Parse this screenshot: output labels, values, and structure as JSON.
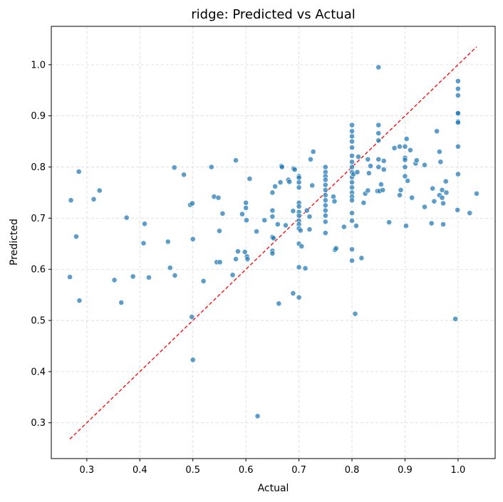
{
  "chart_data": {
    "type": "scatter",
    "title": "ridge: Predicted vs Actual",
    "xlabel": "Actual",
    "ylabel": "Predicted",
    "xlim": [
      0.233,
      1.07
    ],
    "ylim": [
      0.23,
      1.075
    ],
    "xticks": [
      0.3,
      0.4,
      0.5,
      0.6,
      0.7,
      0.8,
      0.9,
      1.0
    ],
    "yticks": [
      0.3,
      0.4,
      0.5,
      0.6,
      0.7,
      0.8,
      0.9,
      1.0
    ],
    "xtick_labels": [
      "0.3",
      "0.4",
      "0.5",
      "0.6",
      "0.7",
      "0.8",
      "0.9",
      "1.0"
    ],
    "ytick_labels": [
      "0.3",
      "0.4",
      "0.5",
      "0.6",
      "0.7",
      "0.8",
      "0.9",
      "1.0"
    ],
    "grid": true,
    "point_color": "#1f77b4",
    "reference_line": {
      "style": "dashed",
      "color": "#ff0000",
      "from": [
        0.268,
        0.268
      ],
      "to": [
        1.035,
        1.035
      ]
    },
    "points": [
      [
        0.268,
        0.585
      ],
      [
        0.27,
        0.735
      ],
      [
        0.28,
        0.664
      ],
      [
        0.285,
        0.791
      ],
      [
        0.286,
        0.539
      ],
      [
        0.313,
        0.737
      ],
      [
        0.324,
        0.754
      ],
      [
        0.352,
        0.579
      ],
      [
        0.365,
        0.535
      ],
      [
        0.375,
        0.701
      ],
      [
        0.387,
        0.586
      ],
      [
        0.407,
        0.651
      ],
      [
        0.409,
        0.689
      ],
      [
        0.417,
        0.584
      ],
      [
        0.453,
        0.654
      ],
      [
        0.457,
        0.603
      ],
      [
        0.465,
        0.799
      ],
      [
        0.466,
        0.588
      ],
      [
        0.483,
        0.785
      ],
      [
        0.495,
        0.726
      ],
      [
        0.498,
        0.507
      ],
      [
        0.499,
        0.729
      ],
      [
        0.5,
        0.659
      ],
      [
        0.5,
        0.423
      ],
      [
        0.52,
        0.577
      ],
      [
        0.535,
        0.8
      ],
      [
        0.54,
        0.742
      ],
      [
        0.545,
        0.614
      ],
      [
        0.548,
        0.74
      ],
      [
        0.55,
        0.675
      ],
      [
        0.551,
        0.614
      ],
      [
        0.556,
        0.709
      ],
      [
        0.575,
        0.589
      ],
      [
        0.581,
        0.813
      ],
      [
        0.581,
        0.62
      ],
      [
        0.585,
        0.635
      ],
      [
        0.593,
        0.708
      ],
      [
        0.598,
        0.634
      ],
      [
        0.6,
        0.73
      ],
      [
        0.6,
        0.72
      ],
      [
        0.601,
        0.696
      ],
      [
        0.602,
        0.625
      ],
      [
        0.603,
        0.62
      ],
      [
        0.607,
        0.777
      ],
      [
        0.62,
        0.674
      ],
      [
        0.622,
        0.313
      ],
      [
        0.635,
        0.696
      ],
      [
        0.65,
        0.75
      ],
      [
        0.65,
        0.715
      ],
      [
        0.65,
        0.703
      ],
      [
        0.65,
        0.663
      ],
      [
        0.65,
        0.636
      ],
      [
        0.65,
        0.631
      ],
      [
        0.652,
        0.661
      ],
      [
        0.655,
        0.762
      ],
      [
        0.66,
        0.688
      ],
      [
        0.662,
        0.533
      ],
      [
        0.665,
        0.77
      ],
      [
        0.667,
        0.802
      ],
      [
        0.668,
        0.8
      ],
      [
        0.675,
        0.686
      ],
      [
        0.68,
        0.775
      ],
      [
        0.682,
        0.771
      ],
      [
        0.689,
        0.714
      ],
      [
        0.689,
        0.553
      ],
      [
        0.69,
        0.797
      ],
      [
        0.692,
        0.795
      ],
      [
        0.7,
        0.782
      ],
      [
        0.7,
        0.779
      ],
      [
        0.7,
        0.77
      ],
      [
        0.7,
        0.76
      ],
      [
        0.7,
        0.73
      ],
      [
        0.7,
        0.723
      ],
      [
        0.7,
        0.712
      ],
      [
        0.7,
        0.705
      ],
      [
        0.7,
        0.695
      ],
      [
        0.7,
        0.688
      ],
      [
        0.7,
        0.68
      ],
      [
        0.7,
        0.65
      ],
      [
        0.7,
        0.604
      ],
      [
        0.7,
        0.545
      ],
      [
        0.703,
        0.676
      ],
      [
        0.705,
        0.645
      ],
      [
        0.712,
        0.602
      ],
      [
        0.715,
        0.715
      ],
      [
        0.72,
        0.703
      ],
      [
        0.72,
        0.678
      ],
      [
        0.722,
        0.815
      ],
      [
        0.725,
        0.764
      ],
      [
        0.727,
        0.83
      ],
      [
        0.75,
        0.8
      ],
      [
        0.75,
        0.79
      ],
      [
        0.75,
        0.782
      ],
      [
        0.75,
        0.775
      ],
      [
        0.75,
        0.765
      ],
      [
        0.75,
        0.755
      ],
      [
        0.75,
        0.745
      ],
      [
        0.75,
        0.735
      ],
      [
        0.75,
        0.725
      ],
      [
        0.75,
        0.715
      ],
      [
        0.75,
        0.705
      ],
      [
        0.75,
        0.693
      ],
      [
        0.75,
        0.671
      ],
      [
        0.765,
        0.742
      ],
      [
        0.767,
        0.733
      ],
      [
        0.768,
        0.638
      ],
      [
        0.77,
        0.641
      ],
      [
        0.785,
        0.683
      ],
      [
        0.8,
        0.882
      ],
      [
        0.8,
        0.87
      ],
      [
        0.8,
        0.86
      ],
      [
        0.8,
        0.85
      ],
      [
        0.8,
        0.838
      ],
      [
        0.8,
        0.822
      ],
      [
        0.8,
        0.81
      ],
      [
        0.8,
        0.8
      ],
      [
        0.8,
        0.79
      ],
      [
        0.8,
        0.78
      ],
      [
        0.8,
        0.77
      ],
      [
        0.8,
        0.76
      ],
      [
        0.8,
        0.75
      ],
      [
        0.8,
        0.742
      ],
      [
        0.8,
        0.735
      ],
      [
        0.8,
        0.71
      ],
      [
        0.8,
        0.695
      ],
      [
        0.8,
        0.639
      ],
      [
        0.8,
        0.617
      ],
      [
        0.803,
        0.786
      ],
      [
        0.806,
        0.513
      ],
      [
        0.808,
        0.685
      ],
      [
        0.81,
        0.79
      ],
      [
        0.812,
        0.82
      ],
      [
        0.818,
        0.622
      ],
      [
        0.822,
        0.73
      ],
      [
        0.825,
        0.748
      ],
      [
        0.83,
        0.754
      ],
      [
        0.83,
        0.815
      ],
      [
        0.832,
        0.788
      ],
      [
        0.835,
        0.802
      ],
      [
        0.848,
        0.753
      ],
      [
        0.85,
        0.995
      ],
      [
        0.85,
        0.882
      ],
      [
        0.85,
        0.866
      ],
      [
        0.85,
        0.852
      ],
      [
        0.85,
        0.815
      ],
      [
        0.85,
        0.8
      ],
      [
        0.852,
        0.753
      ],
      [
        0.855,
        0.766
      ],
      [
        0.858,
        0.755
      ],
      [
        0.86,
        0.812
      ],
      [
        0.86,
        0.795
      ],
      [
        0.87,
        0.692
      ],
      [
        0.88,
        0.837
      ],
      [
        0.89,
        0.84
      ],
      [
        0.89,
        0.745
      ],
      [
        0.892,
        0.755
      ],
      [
        0.9,
        0.84
      ],
      [
        0.9,
        0.818
      ],
      [
        0.9,
        0.814
      ],
      [
        0.9,
        0.8
      ],
      [
        0.9,
        0.782
      ],
      [
        0.902,
        0.685
      ],
      [
        0.903,
        0.855
      ],
      [
        0.905,
        0.773
      ],
      [
        0.91,
        0.833
      ],
      [
        0.913,
        0.74
      ],
      [
        0.92,
        0.807
      ],
      [
        0.922,
        0.813
      ],
      [
        0.937,
        0.722
      ],
      [
        0.937,
        0.804
      ],
      [
        0.95,
        0.69
      ],
      [
        0.952,
        0.758
      ],
      [
        0.955,
        0.733
      ],
      [
        0.96,
        0.87
      ],
      [
        0.965,
        0.745
      ],
      [
        0.965,
        0.83
      ],
      [
        0.967,
        0.81
      ],
      [
        0.97,
        0.755
      ],
      [
        0.97,
        0.74
      ],
      [
        0.972,
        0.729
      ],
      [
        0.972,
        0.688
      ],
      [
        0.977,
        0.772
      ],
      [
        0.978,
        0.75
      ],
      [
        0.995,
        0.503
      ],
      [
        0.999,
        0.716
      ],
      [
        1.0,
        0.968
      ],
      [
        1.0,
        0.953
      ],
      [
        1.0,
        0.94
      ],
      [
        1.0,
        0.906
      ],
      [
        1.0,
        0.905
      ],
      [
        1.0,
        0.889
      ],
      [
        1.0,
        0.887
      ],
      [
        1.0,
        0.84
      ],
      [
        1.0,
        0.786
      ],
      [
        1.022,
        0.71
      ],
      [
        1.035,
        0.748
      ]
    ]
  }
}
